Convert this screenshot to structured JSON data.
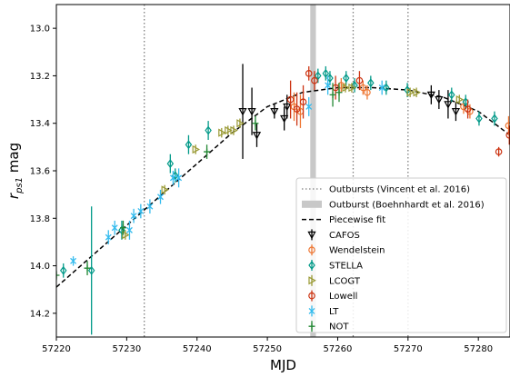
{
  "chart_data": {
    "type": "scatter",
    "xlabel": "MJD",
    "ylabel": "r_ps1 mag",
    "ylabel_main": "r",
    "ylabel_sub": "ps1",
    "ylabel_suffix": " mag",
    "xlim": [
      57220,
      57284.5
    ],
    "ylim": [
      14.3,
      12.9
    ],
    "y_inverted": true,
    "grid": false,
    "legend_position": "lower-right",
    "x_ticks": [
      57220,
      57230,
      57240,
      57250,
      57260,
      57270,
      57280
    ],
    "y_ticks": [
      13.0,
      13.2,
      13.4,
      13.6,
      13.8,
      14.0,
      14.2
    ],
    "y_tick_labels": [
      "13.0",
      "13.2",
      "13.4",
      "13.6",
      "13.8",
      "14.0",
      "14.2"
    ],
    "vertical_lines": {
      "label": "Outbursts (Vincent et al. 2016)",
      "color": "#808080",
      "x": [
        57232.5,
        57262.2,
        57270.0
      ]
    },
    "band": {
      "label": "Outburst (Boehnhardt et al. 2016)",
      "color": "#c8c8c8",
      "x": [
        57256.1,
        57256.9
      ]
    },
    "fit": {
      "label": "Piecewise fit",
      "color": "#000000",
      "points": [
        [
          57220,
          14.09
        ],
        [
          57225,
          13.96
        ],
        [
          57230,
          13.83
        ],
        [
          57235,
          13.7
        ],
        [
          57240,
          13.57
        ],
        [
          57245,
          13.44
        ],
        [
          57250,
          13.33
        ],
        [
          57255,
          13.27
        ],
        [
          57260,
          13.25
        ],
        [
          57265,
          13.25
        ],
        [
          57270,
          13.26
        ],
        [
          57275,
          13.29
        ],
        [
          57280,
          13.35
        ],
        [
          57284.5,
          13.45
        ]
      ]
    },
    "series": [
      {
        "name": "CAFOS",
        "color": "#000000",
        "marker": "tri-down",
        "points": [
          [
            57246.5,
            13.35,
            0.2
          ],
          [
            57247.8,
            13.35,
            0.1
          ],
          [
            57248.5,
            13.45,
            0.05
          ],
          [
            57251.0,
            13.35,
            0.03
          ],
          [
            57252.4,
            13.38,
            0.05
          ],
          [
            57252.8,
            13.33,
            0.05
          ],
          [
            57273.3,
            13.28,
            0.04
          ],
          [
            57274.4,
            13.3,
            0.04
          ],
          [
            57275.7,
            13.32,
            0.06
          ],
          [
            57276.8,
            13.35,
            0.04
          ]
        ]
      },
      {
        "name": "Wendelstein",
        "color": "#ee7733",
        "marker": "circle",
        "points": [
          [
            57253.8,
            13.33,
            0.06
          ],
          [
            57254.7,
            13.35,
            0.07
          ],
          [
            57260.5,
            13.24,
            0.03
          ],
          [
            57263.6,
            13.25,
            0.03
          ],
          [
            57264.2,
            13.27,
            0.03
          ],
          [
            57277.9,
            13.33,
            0.03
          ],
          [
            57278.8,
            13.35,
            0.03
          ],
          [
            57284.3,
            13.41,
            0.04
          ]
        ]
      },
      {
        "name": "STELLA",
        "color": "#009988",
        "marker": "diamond",
        "points": [
          [
            57221.0,
            14.02,
            0.03
          ],
          [
            57225.0,
            14.02,
            0.27
          ],
          [
            57229.3,
            13.85,
            0.04
          ],
          [
            57236.2,
            13.57,
            0.04
          ],
          [
            57236.9,
            13.62,
            0.03
          ],
          [
            57238.8,
            13.49,
            0.04
          ],
          [
            57241.6,
            13.43,
            0.04
          ],
          [
            57257.2,
            13.2,
            0.03
          ],
          [
            57258.3,
            13.19,
            0.03
          ],
          [
            57258.9,
            13.21,
            0.03
          ],
          [
            57261.2,
            13.21,
            0.03
          ],
          [
            57262.4,
            13.24,
            0.03
          ],
          [
            57264.7,
            13.23,
            0.03
          ],
          [
            57266.9,
            13.25,
            0.03
          ],
          [
            57269.9,
            13.26,
            0.03
          ],
          [
            57276.2,
            13.28,
            0.03
          ],
          [
            57278.2,
            13.31,
            0.03
          ],
          [
            57280.1,
            13.38,
            0.03
          ],
          [
            57282.3,
            13.38,
            0.03
          ]
        ]
      },
      {
        "name": "LCOGT",
        "color": "#999933",
        "marker": "tri-right",
        "points": [
          [
            57229.8,
            13.87,
            0.02
          ],
          [
            57235.4,
            13.68,
            0.02
          ],
          [
            57239.8,
            13.51,
            0.02
          ],
          [
            57243.5,
            13.44,
            0.02
          ],
          [
            57244.4,
            13.43,
            0.02
          ],
          [
            57245.2,
            13.43,
            0.02
          ],
          [
            57246.1,
            13.4,
            0.02
          ],
          [
            57261.1,
            13.25,
            0.02
          ],
          [
            57262.0,
            13.25,
            0.02
          ],
          [
            57270.3,
            13.27,
            0.02
          ],
          [
            57271.2,
            13.27,
            0.02
          ],
          [
            57277.3,
            13.3,
            0.02
          ]
        ]
      },
      {
        "name": "Lowell",
        "color": "#cc3311",
        "marker": "circle",
        "points": [
          [
            57253.3,
            13.3,
            0.08
          ],
          [
            57254.2,
            13.34,
            0.07
          ],
          [
            57255.1,
            13.31,
            0.07
          ],
          [
            57255.9,
            13.19,
            0.03
          ],
          [
            57256.7,
            13.22,
            0.04
          ],
          [
            57259.7,
            13.25,
            0.05
          ],
          [
            57263.1,
            13.22,
            0.04
          ],
          [
            57278.5,
            13.34,
            0.04
          ],
          [
            57282.9,
            13.52,
            0.02
          ],
          [
            57284.4,
            13.45,
            0.04
          ]
        ]
      },
      {
        "name": "LT",
        "color": "#33bbee",
        "marker": "x",
        "points": [
          [
            57222.4,
            13.98,
            0.02
          ],
          [
            57227.4,
            13.88,
            0.03
          ],
          [
            57228.3,
            13.84,
            0.03
          ],
          [
            57230.4,
            13.85,
            0.04
          ],
          [
            57231.0,
            13.79,
            0.03
          ],
          [
            57232.0,
            13.77,
            0.03
          ],
          [
            57233.3,
            13.75,
            0.03
          ],
          [
            57234.8,
            13.71,
            0.03
          ],
          [
            57236.6,
            13.63,
            0.03
          ],
          [
            57237.4,
            13.63,
            0.04
          ],
          [
            57255.9,
            13.33,
            0.04
          ],
          [
            57258.6,
            13.24,
            0.04
          ],
          [
            57266.3,
            13.25,
            0.03
          ]
        ]
      },
      {
        "name": "NOT",
        "color": "#228833",
        "marker": "plus",
        "points": [
          [
            57220.0,
            14.04,
            0.02
          ],
          [
            57224.4,
            14.01,
            0.03
          ],
          [
            57229.5,
            13.84,
            0.03
          ],
          [
            57241.4,
            13.52,
            0.03
          ],
          [
            57248.3,
            13.4,
            0.03
          ],
          [
            57259.3,
            13.28,
            0.05
          ],
          [
            57260.2,
            13.27,
            0.04
          ]
        ]
      }
    ]
  }
}
